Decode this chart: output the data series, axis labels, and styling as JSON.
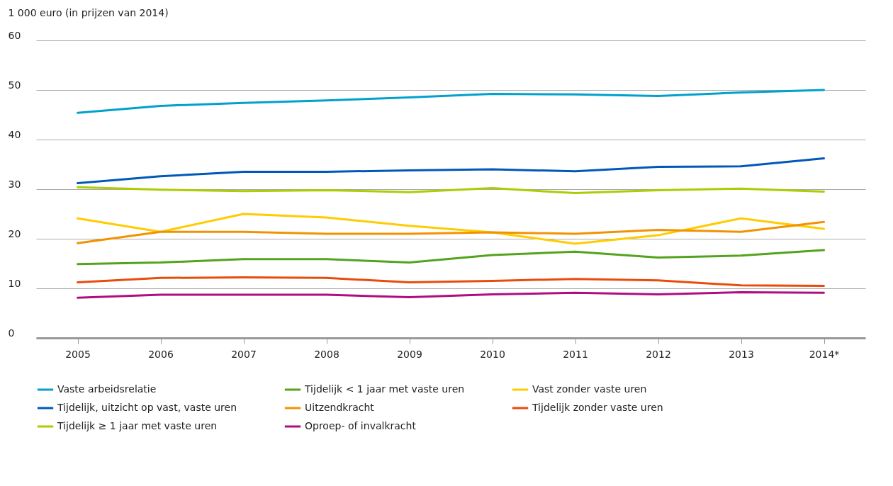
{
  "chart_data": {
    "type": "line",
    "ylabel": "1 000 euro (in prijzen van 2014)",
    "categories": [
      "2005",
      "2006",
      "2007",
      "2008",
      "2009",
      "2010",
      "2011",
      "2012",
      "2013",
      "2014*"
    ],
    "ylim": [
      0,
      60
    ],
    "yticks": [
      0,
      10,
      20,
      30,
      40,
      50,
      60
    ],
    "grid": "y",
    "legend": "bottom",
    "series": [
      {
        "name": "Vaste arbeidsrelatie",
        "color": "#00a1cd",
        "values": [
          45.4,
          46.8,
          47.4,
          47.9,
          48.5,
          49.2,
          49.1,
          48.8,
          49.5,
          50.0
        ]
      },
      {
        "name": "Tijdelijk < 1 jaar met vaste uren",
        "color": "#53a31d",
        "values": [
          14.9,
          15.2,
          15.9,
          15.9,
          15.2,
          16.7,
          17.4,
          16.2,
          16.6,
          17.7
        ]
      },
      {
        "name": "Vast zonder vaste uren",
        "color": "#ffcc00",
        "values": [
          24.1,
          21.4,
          25.0,
          24.3,
          22.6,
          21.3,
          19.0,
          20.7,
          24.1,
          22.0
        ]
      },
      {
        "name": "Tijdelijk, uitzicht op vast, vaste uren",
        "color": "#0058b8",
        "values": [
          31.2,
          32.6,
          33.5,
          33.5,
          33.8,
          34.0,
          33.6,
          34.5,
          34.6,
          36.2
        ]
      },
      {
        "name": "Uitzendkracht",
        "color": "#f39200",
        "values": [
          19.1,
          21.4,
          21.4,
          21.0,
          21.0,
          21.3,
          21.0,
          21.8,
          21.4,
          23.4
        ]
      },
      {
        "name": "Tijdelijk zonder vaste uren",
        "color": "#e94c0a",
        "values": [
          11.2,
          12.1,
          12.2,
          12.1,
          11.2,
          11.5,
          11.9,
          11.6,
          10.6,
          10.5
        ]
      },
      {
        "name": "Tijdelijk ≥ 1 jaar met vaste uren",
        "color": "#afcb05",
        "values": [
          30.4,
          29.9,
          29.6,
          29.8,
          29.4,
          30.2,
          29.2,
          29.8,
          30.1,
          29.5
        ]
      },
      {
        "name": "Oproep- of invalkracht",
        "color": "#af0e80",
        "values": [
          8.1,
          8.7,
          8.7,
          8.7,
          8.2,
          8.8,
          9.1,
          8.8,
          9.2,
          9.1
        ]
      }
    ]
  }
}
